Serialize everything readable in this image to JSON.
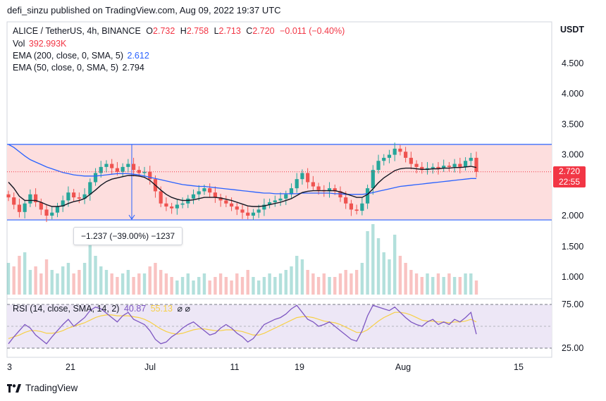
{
  "publisher_line": "defi_sinzu published on TradingView.com, Aug 09, 2022 19:37 UTC",
  "legend": {
    "symbol": "ALICE / TetherUS, 4h, BINANCE",
    "o_label": "O",
    "o_value": "2.732",
    "h_label": "H",
    "h_value": "2.758",
    "l_label": "L",
    "l_value": "2.713",
    "c_label": "C",
    "c_value": "2.720",
    "change": "−0.011 (−0.40%)",
    "vol_label": "Vol",
    "vol_value": "392.993K",
    "ema200_label": "EMA (200, close, 0, SMA, 5)",
    "ema200_value": "2.612",
    "ema50_label": "EMA (50, close, 0, SMA, 5)",
    "ema50_value": "2.794"
  },
  "currency_label": "USDT",
  "price_badge": {
    "price": "2.720",
    "countdown": "22:55"
  },
  "measure_label": "−1.237 (−39.00%) −1237",
  "rsi_legend": {
    "label": "RSI (14, close, SMA, 14, 2)",
    "value1": "40.87",
    "value2": "55.13",
    "icons": "⌀ ⌀"
  },
  "footer_brand": "TradingView",
  "colors": {
    "up": "#26a69a",
    "down": "#ef5350",
    "ema200": "#2962ff",
    "ema50": "#131722",
    "rsi": "#7e57c2",
    "rsi_ma": "#f7d046",
    "range_fill": "#fddede"
  },
  "chart_data": {
    "type": "candlestick",
    "price_ticks": [
      "4.500",
      "4.000",
      "3.500",
      "3.000",
      "2.000",
      "1.500",
      "1.000"
    ],
    "price_tick_values": [
      4.5,
      4.0,
      3.5,
      3.0,
      2.0,
      1.5,
      1.0
    ],
    "rsi_ticks": [
      "75.00",
      "25.00"
    ],
    "rsi_tick_values": [
      75,
      25
    ],
    "x_ticks": [
      "3",
      "21",
      "Jul",
      "11",
      "19",
      "Aug",
      "15"
    ],
    "range_box": {
      "top": 3.17,
      "bottom": 1.93
    },
    "current_price": 2.72,
    "price_series": [
      2.3,
      2.18,
      2.06,
      2.2,
      2.35,
      2.22,
      2.1,
      2.0,
      2.05,
      2.15,
      2.25,
      2.38,
      2.3,
      2.28,
      2.35,
      2.55,
      2.7,
      2.8,
      2.85,
      2.78,
      2.72,
      2.8,
      2.85,
      2.75,
      2.7,
      2.72,
      2.6,
      2.4,
      2.2,
      2.15,
      2.12,
      2.18,
      2.2,
      2.28,
      2.35,
      2.4,
      2.45,
      2.38,
      2.3,
      2.25,
      2.2,
      2.15,
      2.1,
      2.05,
      2.0,
      2.05,
      2.1,
      2.18,
      2.22,
      2.25,
      2.28,
      2.35,
      2.45,
      2.6,
      2.7,
      2.55,
      2.48,
      2.42,
      2.4,
      2.45,
      2.4,
      2.3,
      2.2,
      2.1,
      2.08,
      2.2,
      2.45,
      2.75,
      2.9,
      2.95,
      3.0,
      3.1,
      3.05,
      2.95,
      2.85,
      2.8,
      2.75,
      2.78,
      2.8,
      2.78,
      2.82,
      2.8,
      2.85,
      2.8,
      2.9,
      2.95,
      2.72
    ],
    "ema50_series": [
      2.55,
      2.45,
      2.32,
      2.25,
      2.25,
      2.25,
      2.22,
      2.18,
      2.15,
      2.15,
      2.16,
      2.2,
      2.23,
      2.25,
      2.28,
      2.35,
      2.42,
      2.5,
      2.56,
      2.6,
      2.62,
      2.64,
      2.66,
      2.66,
      2.65,
      2.63,
      2.58,
      2.5,
      2.42,
      2.35,
      2.3,
      2.27,
      2.25,
      2.25,
      2.26,
      2.28,
      2.3,
      2.3,
      2.3,
      2.29,
      2.27,
      2.25,
      2.22,
      2.19,
      2.16,
      2.15,
      2.15,
      2.16,
      2.18,
      2.2,
      2.22,
      2.25,
      2.28,
      2.33,
      2.38,
      2.4,
      2.41,
      2.41,
      2.41,
      2.41,
      2.41,
      2.39,
      2.36,
      2.33,
      2.3,
      2.3,
      2.35,
      2.44,
      2.54,
      2.62,
      2.68,
      2.74,
      2.77,
      2.78,
      2.78,
      2.77,
      2.76,
      2.76,
      2.77,
      2.77,
      2.78,
      2.78,
      2.79,
      2.79,
      2.8,
      2.81,
      2.79
    ],
    "ema200_series": [
      3.17,
      3.12,
      3.05,
      2.98,
      2.92,
      2.88,
      2.84,
      2.8,
      2.77,
      2.74,
      2.71,
      2.69,
      2.67,
      2.66,
      2.65,
      2.65,
      2.65,
      2.66,
      2.67,
      2.68,
      2.69,
      2.69,
      2.69,
      2.68,
      2.67,
      2.65,
      2.63,
      2.61,
      2.59,
      2.57,
      2.55,
      2.53,
      2.51,
      2.5,
      2.49,
      2.48,
      2.48,
      2.47,
      2.46,
      2.45,
      2.44,
      2.43,
      2.42,
      2.41,
      2.4,
      2.39,
      2.38,
      2.37,
      2.37,
      2.36,
      2.36,
      2.36,
      2.36,
      2.36,
      2.37,
      2.37,
      2.37,
      2.37,
      2.37,
      2.37,
      2.36,
      2.36,
      2.35,
      2.35,
      2.35,
      2.35,
      2.36,
      2.38,
      2.4,
      2.42,
      2.44,
      2.46,
      2.48,
      2.49,
      2.5,
      2.51,
      2.52,
      2.53,
      2.54,
      2.55,
      2.56,
      2.57,
      2.58,
      2.59,
      2.6,
      2.61,
      2.61
    ],
    "volume_series": [
      0.45,
      0.4,
      0.55,
      0.6,
      0.35,
      0.4,
      0.3,
      0.5,
      0.35,
      0.3,
      0.4,
      0.45,
      0.3,
      0.35,
      0.45,
      0.7,
      0.55,
      0.4,
      0.35,
      0.3,
      0.25,
      0.3,
      0.35,
      0.25,
      0.3,
      0.3,
      0.4,
      0.45,
      0.35,
      0.3,
      0.25,
      0.2,
      0.25,
      0.3,
      0.2,
      0.25,
      0.3,
      0.2,
      0.25,
      0.3,
      0.25,
      0.2,
      0.3,
      0.25,
      0.35,
      0.25,
      0.2,
      0.25,
      0.3,
      0.25,
      0.3,
      0.35,
      0.4,
      0.55,
      0.5,
      0.35,
      0.3,
      0.25,
      0.3,
      0.25,
      0.25,
      0.3,
      0.35,
      0.3,
      0.35,
      0.45,
      0.9,
      1.0,
      0.8,
      0.6,
      0.5,
      0.85,
      0.55,
      0.45,
      0.35,
      0.3,
      0.25,
      0.3,
      0.25,
      0.3,
      0.25,
      0.3,
      0.25,
      0.25,
      0.3,
      0.3,
      0.2
    ],
    "rsi_series": [
      30,
      38,
      45,
      52,
      48,
      40,
      35,
      30,
      38,
      45,
      52,
      58,
      50,
      55,
      60,
      68,
      72,
      70,
      65,
      60,
      55,
      62,
      66,
      58,
      55,
      52,
      45,
      35,
      30,
      32,
      38,
      42,
      48,
      52,
      55,
      50,
      45,
      40,
      42,
      48,
      52,
      48,
      42,
      38,
      32,
      36,
      44,
      52,
      55,
      58,
      60,
      64,
      70,
      74,
      66,
      58,
      55,
      50,
      52,
      55,
      50,
      45,
      40,
      35,
      33,
      45,
      62,
      74,
      72,
      70,
      68,
      72,
      66,
      60,
      55,
      52,
      50,
      55,
      58,
      52,
      55,
      52,
      58,
      55,
      60,
      66,
      41
    ],
    "rsi_ma_series": [
      36,
      38,
      40,
      43,
      45,
      45,
      44,
      42,
      42,
      43,
      45,
      48,
      50,
      52,
      54,
      57,
      60,
      62,
      63,
      63,
      62,
      62,
      62,
      61,
      60,
      58,
      55,
      51,
      47,
      44,
      42,
      41,
      42,
      44,
      46,
      47,
      47,
      46,
      45,
      45,
      46,
      46,
      45,
      44,
      42,
      40,
      40,
      42,
      45,
      48,
      51,
      54,
      57,
      60,
      61,
      61,
      60,
      58,
      56,
      55,
      54,
      52,
      49,
      46,
      43,
      43,
      46,
      51,
      56,
      60,
      63,
      66,
      66,
      65,
      63,
      60,
      57,
      56,
      56,
      55,
      55,
      54,
      55,
      55,
      56,
      58,
      55
    ]
  }
}
